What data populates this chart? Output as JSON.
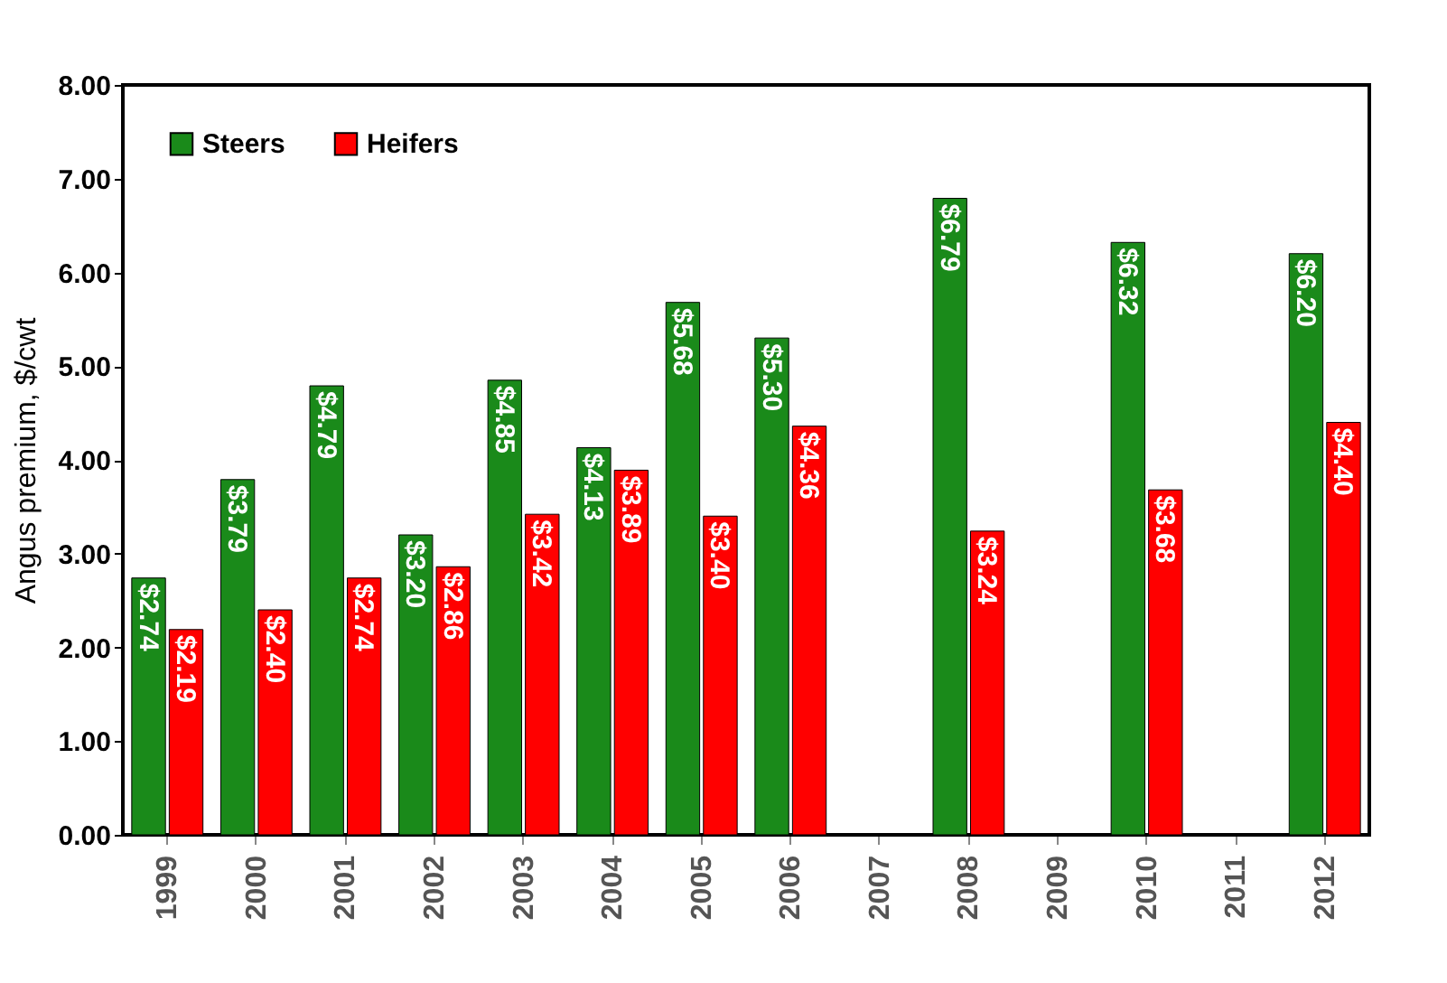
{
  "chart_data": {
    "type": "bar",
    "ylabel": "Angus premium, $/cwt",
    "categories": [
      "1999",
      "2000",
      "2001",
      "2002",
      "2003",
      "2004",
      "2005",
      "2006",
      "2007",
      "2008",
      "2009",
      "2010",
      "2011",
      "2012"
    ],
    "series": [
      {
        "name": "Steers",
        "color": "#1a8a1a",
        "values": [
          2.74,
          3.79,
          4.79,
          3.2,
          4.85,
          4.13,
          5.68,
          5.3,
          null,
          6.79,
          null,
          6.32,
          null,
          6.2
        ],
        "value_labels": [
          "$2.74",
          "$3.79",
          "$4.79",
          "$3.20",
          "$4.85",
          "$4.13",
          "$5.68",
          "$5.30",
          null,
          "$6.79",
          null,
          "$6.32",
          null,
          "$6.20"
        ]
      },
      {
        "name": "Heifers",
        "color": "#ff0000",
        "values": [
          2.19,
          2.4,
          2.74,
          2.86,
          3.42,
          3.89,
          3.4,
          4.36,
          null,
          3.24,
          null,
          3.68,
          null,
          4.4
        ],
        "value_labels": [
          "$2.19",
          "$2.40",
          "$2.74",
          "$2.86",
          "$3.42",
          "$3.89",
          "$3.40",
          "$4.36",
          null,
          "$3.24",
          null,
          "$3.68",
          null,
          "$4.40"
        ]
      }
    ],
    "ylim": [
      0,
      8
    ],
    "yticks": [
      {
        "value": 0,
        "label": "0.00"
      },
      {
        "value": 1,
        "label": "1.00"
      },
      {
        "value": 2,
        "label": "2.00"
      },
      {
        "value": 3,
        "label": "3.00"
      },
      {
        "value": 4,
        "label": "4.00"
      },
      {
        "value": 5,
        "label": "5.00"
      },
      {
        "value": 6,
        "label": "6.00"
      },
      {
        "value": 7,
        "label": "7.00"
      },
      {
        "value": 8,
        "label": "8.00"
      }
    ],
    "legend": "top left",
    "grid": false
  }
}
